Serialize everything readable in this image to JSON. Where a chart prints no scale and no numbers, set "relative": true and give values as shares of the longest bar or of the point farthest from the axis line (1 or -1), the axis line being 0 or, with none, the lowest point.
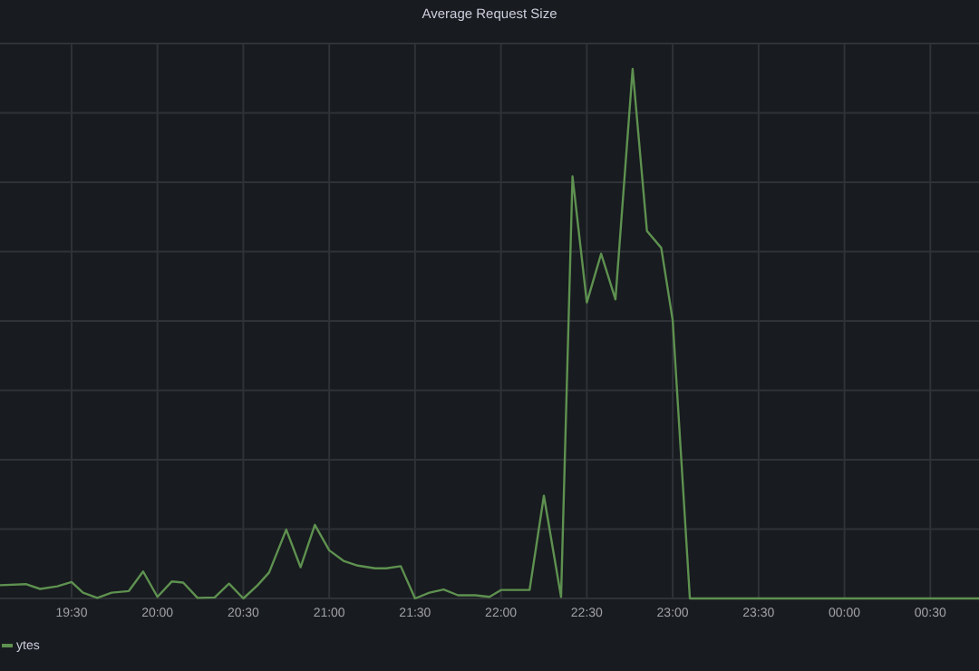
{
  "chart_data": {
    "type": "line",
    "title": "Average Request Size",
    "relative": true,
    "grid": true,
    "legend": "bottom left",
    "marker": "none",
    "line_style": "solid",
    "x": [
      "2000-01-01T19:05",
      "2000-01-01T19:14",
      "2000-01-01T19:19",
      "2000-01-01T19:25",
      "2000-01-01T19:30",
      "2000-01-01T19:34",
      "2000-01-01T19:39",
      "2000-01-01T19:44",
      "2000-01-01T19:50",
      "2000-01-01T19:55",
      "2000-01-01T20:00",
      "2000-01-01T20:05",
      "2000-01-01T20:09",
      "2000-01-01T20:14",
      "2000-01-01T20:20",
      "2000-01-01T20:25",
      "2000-01-01T20:30",
      "2000-01-01T20:35",
      "2000-01-01T20:39",
      "2000-01-01T20:45",
      "2000-01-01T20:50",
      "2000-01-01T20:55",
      "2000-01-01T21:00",
      "2000-01-01T21:05",
      "2000-01-01T21:10",
      "2000-01-01T21:16",
      "2000-01-01T21:20",
      "2000-01-01T21:25",
      "2000-01-01T21:30",
      "2000-01-01T21:35",
      "2000-01-01T21:40",
      "2000-01-01T21:45",
      "2000-01-01T21:51",
      "2000-01-01T21:56",
      "2000-01-01T22:00",
      "2000-01-01T22:10",
      "2000-01-01T22:15",
      "2000-01-01T22:21",
      "2000-01-01T22:25",
      "2000-01-01T22:30",
      "2000-01-01T22:35",
      "2000-01-01T22:40",
      "2000-01-01T22:46",
      "2000-01-01T22:51",
      "2000-01-01T22:56",
      "2000-01-01T23:00",
      "2000-01-01T23:06",
      "2000-01-02T00:00",
      "2000-01-02T00:47"
    ],
    "xlim": [
      "2000-01-01T19:05",
      "2000-01-02T00:47"
    ],
    "xticks": [
      {
        "value": "2000-01-01T19:30",
        "label": "19:30"
      },
      {
        "value": "2000-01-01T20:00",
        "label": "20:00"
      },
      {
        "value": "2000-01-01T20:30",
        "label": "20:30"
      },
      {
        "value": "2000-01-01T21:00",
        "label": "21:00"
      },
      {
        "value": "2000-01-01T21:30",
        "label": "21:30"
      },
      {
        "value": "2000-01-01T22:00",
        "label": "22:00"
      },
      {
        "value": "2000-01-01T22:30",
        "label": "22:30"
      },
      {
        "value": "2000-01-01T23:00",
        "label": "23:00"
      },
      {
        "value": "2000-01-01T23:30",
        "label": "23:30"
      },
      {
        "value": "2000-01-02T00:00",
        "label": "00:00"
      },
      {
        "value": "2000-01-02T00:30",
        "label": "00:30"
      }
    ],
    "series": [
      {
        "name": "ytes",
        "color": "#5e9150",
        "values": [
          0.025,
          0.027,
          0.018,
          0.023,
          0.031,
          0.011,
          0.001,
          0.011,
          0.014,
          0.051,
          0.003,
          0.032,
          0.03,
          0.001,
          0.002,
          0.028,
          0,
          0.025,
          0.049,
          0.13,
          0.059,
          0.139,
          0.091,
          0.071,
          0.062,
          0.057,
          0.057,
          0.061,
          0,
          0.011,
          0.017,
          0.006,
          0.006,
          0.003,
          0.016,
          0.016,
          0.194,
          0.003,
          0.797,
          0.559,
          0.651,
          0.565,
          1,
          0.694,
          0.662,
          0.525,
          0,
          0,
          0
        ]
      }
    ]
  }
}
